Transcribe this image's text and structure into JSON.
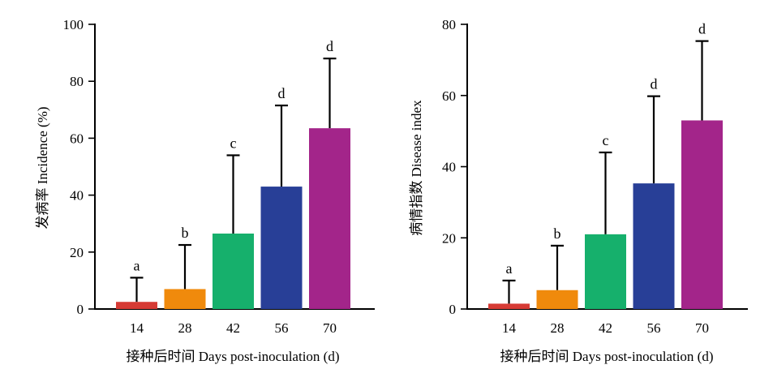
{
  "chart_data": [
    {
      "type": "bar",
      "categories": [
        "14",
        "28",
        "42",
        "56",
        "70"
      ],
      "values": [
        2.5,
        7,
        26.5,
        43,
        63.5
      ],
      "error_upper": [
        11,
        22.5,
        54,
        71.5,
        88
      ],
      "significance_letters": [
        "a",
        "b",
        "c",
        "d",
        "d"
      ],
      "colors": [
        "#d63b35",
        "#f08a0c",
        "#16b06c",
        "#283f97",
        "#a3258a"
      ],
      "xlabel": "接种后时间 Days post-inoculation (d)",
      "ylabel": "发病率 Incidence (%)",
      "ylim": [
        0,
        100
      ],
      "yticks": [
        0,
        20,
        40,
        60,
        80,
        100
      ],
      "grid": false
    },
    {
      "type": "bar",
      "categories": [
        "14",
        "28",
        "42",
        "56",
        "70"
      ],
      "values": [
        1.5,
        5.3,
        21,
        35.3,
        53
      ],
      "error_upper": [
        8,
        17.8,
        44,
        59.8,
        75.3
      ],
      "significance_letters": [
        "a",
        "b",
        "c",
        "d",
        "d"
      ],
      "colors": [
        "#d63b35",
        "#f08a0c",
        "#16b06c",
        "#283f97",
        "#a3258a"
      ],
      "xlabel": "接种后时间 Days post-inoculation (d)",
      "ylabel": "病情指数 Disease index",
      "ylim": [
        0,
        80
      ],
      "yticks": [
        0,
        20,
        40,
        60,
        80
      ],
      "grid": false
    }
  ]
}
